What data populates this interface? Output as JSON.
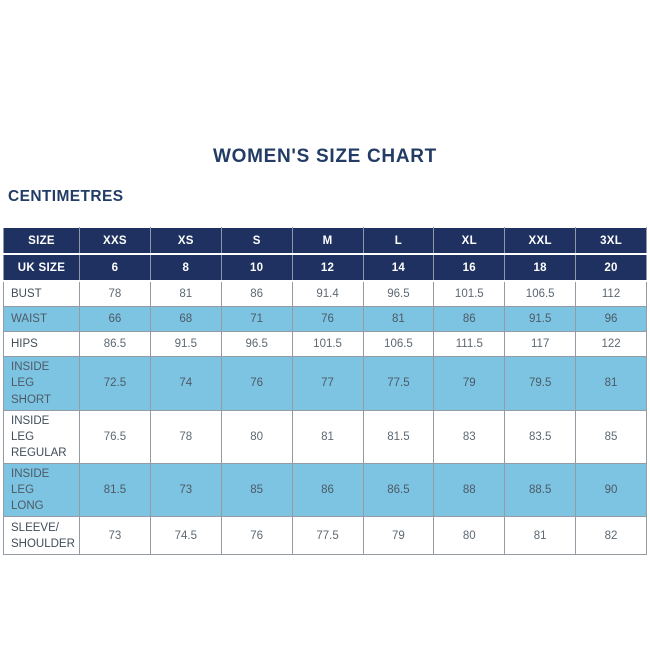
{
  "page": {
    "title": "WOMEN'S SIZE CHART",
    "unit_label": "CENTIMETRES"
  },
  "colors": {
    "header_navy": "#1e3160",
    "shaded_blue": "#7dc4e2",
    "grid_border": "#949ba3",
    "title_text": "#223c66",
    "label_text": "#414d59",
    "value_text": "#5d6872",
    "header_text": "#ffffff",
    "background": "#ffffff"
  },
  "chart_data": {
    "type": "table",
    "title": "WOMEN'S SIZE CHART",
    "subtitle": "CENTIMETRES",
    "header_rows": [
      {
        "label": "SIZE",
        "values": [
          "XXS",
          "XS",
          "S",
          "M",
          "L",
          "XL",
          "XXL",
          "3XL"
        ]
      },
      {
        "label": "UK SIZE",
        "values": [
          "6",
          "8",
          "10",
          "12",
          "14",
          "16",
          "18",
          "20"
        ]
      }
    ],
    "rows": [
      {
        "label": "BUST",
        "values": [
          "78",
          "81",
          "86",
          "91.4",
          "96.5",
          "101.5",
          "106.5",
          "112"
        ],
        "shaded": false
      },
      {
        "label": "WAIST",
        "values": [
          "66",
          "68",
          "71",
          "76",
          "81",
          "86",
          "91.5",
          "96"
        ],
        "shaded": true
      },
      {
        "label": "HIPS",
        "values": [
          "86.5",
          "91.5",
          "96.5",
          "101.5",
          "106.5",
          "111.5",
          "117",
          "122"
        ],
        "shaded": false
      },
      {
        "label": "INSIDE LEG\nSHORT",
        "values": [
          "72.5",
          "74",
          "76",
          "77",
          "77.5",
          "79",
          "79.5",
          "81"
        ],
        "shaded": true
      },
      {
        "label": "INSIDE LEG\nREGULAR",
        "values": [
          "76.5",
          "78",
          "80",
          "81",
          "81.5",
          "83",
          "83.5",
          "85"
        ],
        "shaded": false
      },
      {
        "label": "INSIDE LEG\nLONG",
        "values": [
          "81.5",
          "73",
          "85",
          "86",
          "86.5",
          "88",
          "88.5",
          "90"
        ],
        "shaded": true
      },
      {
        "label": "SLEEVE/\nSHOULDER",
        "values": [
          "73",
          "74.5",
          "76",
          "77.5",
          "79",
          "80",
          "81",
          "82"
        ],
        "shaded": false
      }
    ]
  }
}
